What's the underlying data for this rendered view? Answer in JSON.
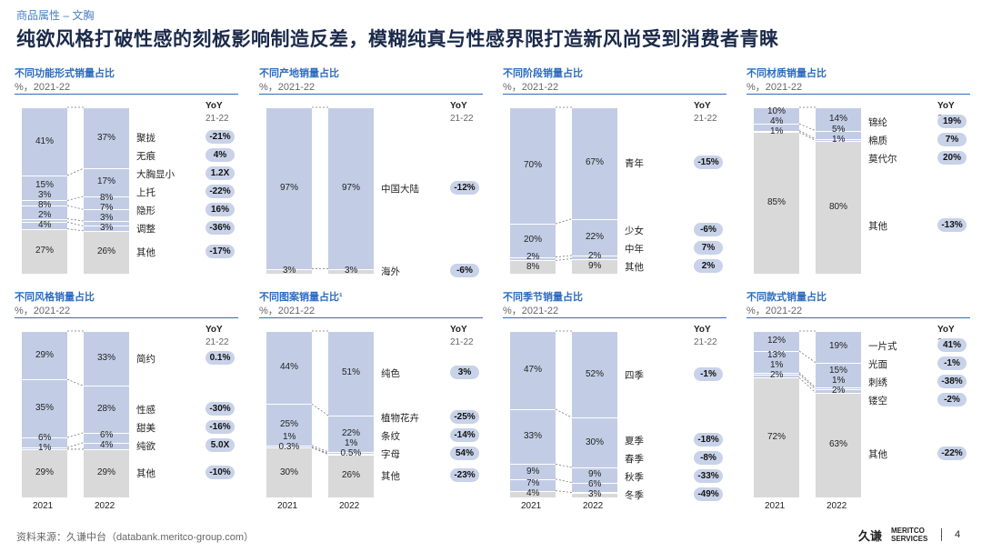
{
  "header": {
    "breadcrumb": "商品属性 – 文胸",
    "title": "纯欲风格打破性感的刻板影响制造反差，模糊纯真与性感界限打造新风尚受到消费者青睐"
  },
  "footer": {
    "source": "资料来源：久谦中台（databank.meritco-group.com）",
    "logo_cn": "久谦",
    "logo_en1": "MERITCO",
    "logo_en2": "SERVICES",
    "page": "4"
  },
  "common": {
    "unit": "%，2021-22",
    "yoy": "YoY",
    "yoy_sub": "21-22",
    "year1": "2021",
    "year2": "2022"
  },
  "colors": {
    "blue": "#c2cde5",
    "grey": "#d9d9d9",
    "accent": "#2e6cc0"
  },
  "chart_data": [
    {
      "type": "bar",
      "stacked": true,
      "title": "不同功能形式销量占比",
      "categories": [
        "2021",
        "2022"
      ],
      "series": [
        {
          "name": "其他",
          "values": [
            27,
            26
          ],
          "yoy": "-17%"
        },
        {
          "name": "调整",
          "values": [
            4,
            3
          ],
          "yoy": "-36%"
        },
        {
          "name": "隐形",
          "values": [
            2,
            3
          ],
          "yoy": "16%"
        },
        {
          "name": "上托",
          "values": [
            8,
            7
          ],
          "yoy": "-22%"
        },
        {
          "name": "大胸显小",
          "values": [
            3,
            8
          ],
          "yoy": "1.2X"
        },
        {
          "name": "无痕",
          "values": [
            15,
            17
          ],
          "yoy": "4%"
        },
        {
          "name": "聚拢",
          "values": [
            41,
            37
          ],
          "yoy": "-21%"
        }
      ]
    },
    {
      "type": "bar",
      "stacked": true,
      "title": "不同产地销量占比",
      "categories": [
        "2021",
        "2022"
      ],
      "series": [
        {
          "name": "海外",
          "values": [
            3,
            3
          ],
          "yoy": "-6%"
        },
        {
          "name": "中国大陆",
          "values": [
            97,
            97
          ],
          "yoy": "-12%"
        }
      ]
    },
    {
      "type": "bar",
      "stacked": true,
      "title": "不同阶段销量占比",
      "categories": [
        "2021",
        "2022"
      ],
      "series": [
        {
          "name": "其他",
          "values": [
            8,
            9
          ],
          "yoy": "2%"
        },
        {
          "name": "中年",
          "values": [
            2,
            2
          ],
          "yoy": "7%"
        },
        {
          "name": "少女",
          "values": [
            20,
            22
          ],
          "yoy": "-6%"
        },
        {
          "name": "青年",
          "values": [
            70,
            67
          ],
          "yoy": "-15%"
        }
      ]
    },
    {
      "type": "bar",
      "stacked": true,
      "title": "不同材质销量占比",
      "categories": [
        "2021",
        "2022"
      ],
      "series": [
        {
          "name": "其他",
          "values": [
            85,
            80
          ],
          "yoy": "-13%"
        },
        {
          "name": "莫代尔",
          "values": [
            1,
            1
          ],
          "yoy": "20%"
        },
        {
          "name": "棉质",
          "values": [
            4,
            5
          ],
          "yoy": "7%"
        },
        {
          "name": "锦纶",
          "values": [
            10,
            14
          ],
          "yoy": "19%"
        }
      ]
    },
    {
      "type": "bar",
      "stacked": true,
      "title": "不同风格销量占比",
      "categories": [
        "2021",
        "2022"
      ],
      "series": [
        {
          "name": "其他",
          "values": [
            29,
            29
          ],
          "yoy": "-10%"
        },
        {
          "name": "纯欲",
          "values": [
            1,
            4
          ],
          "yoy": "5.0X"
        },
        {
          "name": "甜美",
          "values": [
            6,
            6
          ],
          "yoy": "-16%"
        },
        {
          "name": "性感",
          "values": [
            35,
            28
          ],
          "yoy": "-30%"
        },
        {
          "name": "简约",
          "values": [
            29,
            33
          ],
          "yoy": "0.1%"
        }
      ]
    },
    {
      "type": "bar",
      "stacked": true,
      "title": "不同图案销量占比¹",
      "categories": [
        "2021",
        "2022"
      ],
      "series": [
        {
          "name": "其他",
          "values": [
            30,
            26
          ],
          "yoy": "-23%"
        },
        {
          "name": "字母",
          "values": [
            0.3,
            0.5
          ],
          "yoy": "54%"
        },
        {
          "name": "条纹",
          "values": [
            1,
            1
          ],
          "yoy": "-14%"
        },
        {
          "name": "植物花卉",
          "values": [
            25,
            22
          ],
          "yoy": "-25%"
        },
        {
          "name": "纯色",
          "values": [
            44,
            51
          ],
          "yoy": "3%"
        }
      ]
    },
    {
      "type": "bar",
      "stacked": true,
      "title": "不同季节销量占比",
      "categories": [
        "2021",
        "2022"
      ],
      "series": [
        {
          "name": "冬季",
          "values": [
            4,
            3
          ],
          "yoy": "-49%"
        },
        {
          "name": "秋季",
          "values": [
            7,
            6
          ],
          "yoy": "-33%"
        },
        {
          "name": "春季",
          "values": [
            9,
            9
          ],
          "yoy": "-8%"
        },
        {
          "name": "夏季",
          "values": [
            33,
            30
          ],
          "yoy": "-18%"
        },
        {
          "name": "四季",
          "values": [
            47,
            52
          ],
          "yoy": "-1%"
        }
      ]
    },
    {
      "type": "bar",
      "stacked": true,
      "title": "不同款式销量占比",
      "categories": [
        "2021",
        "2022"
      ],
      "series": [
        {
          "name": "其他",
          "values": [
            72,
            63
          ],
          "yoy": "-22%"
        },
        {
          "name": "镂空",
          "values": [
            2,
            2
          ],
          "yoy": "-2%"
        },
        {
          "name": "刺绣",
          "values": [
            1,
            1
          ],
          "yoy": "-38%"
        },
        {
          "name": "光面",
          "values": [
            13,
            15
          ],
          "yoy": "-1%"
        },
        {
          "name": "一片式",
          "values": [
            12,
            19
          ],
          "yoy": "41%"
        }
      ]
    }
  ]
}
